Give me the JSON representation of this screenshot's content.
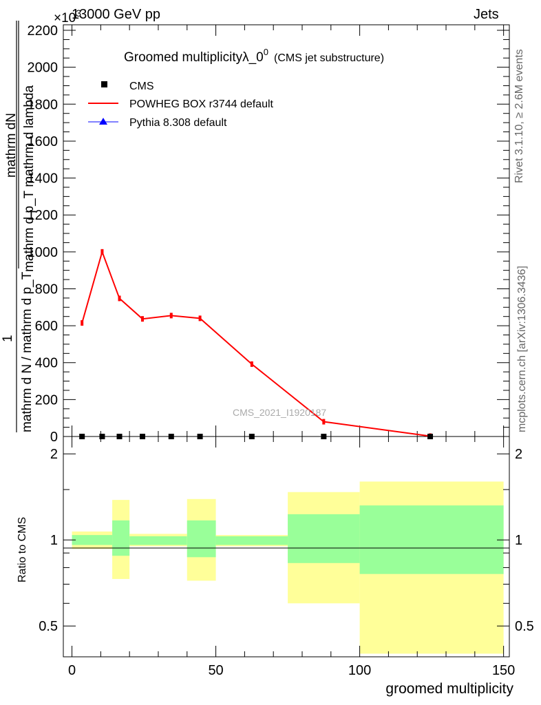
{
  "header": {
    "left": "13000 GeV pp",
    "right": "Jets",
    "exponent": "×10",
    "exponent_power": "3"
  },
  "side_labels": {
    "rivet": "Rivet 3.1.10, ≥ 2.6M events",
    "mcplots": "mcplots.cern.ch [arXiv:1306.3436]"
  },
  "main": {
    "title": "Groomed multiplicityλ_0",
    "title_sup": "0",
    "title_suffix": "(CMS jet substructure)",
    "watermark": "CMS_2021_I1920187",
    "ylabel_top": "mathrm dN",
    "ylabel_mid": "mathrm d p_T mathrm d lambda",
    "ylabel_one": "1",
    "ylabel_bottom": "mathrm d N / mathrm d p_T",
    "legend": [
      {
        "label": "CMS",
        "marker": "square",
        "color": "#000000"
      },
      {
        "label": "POWHEG BOX r3744 default",
        "marker": "line",
        "color": "#ff0000"
      },
      {
        "label": "Pythia 8.308 default",
        "marker": "triangle",
        "color": "#0000ff"
      }
    ]
  },
  "ratio": {
    "ylabel": "Ratio to CMS",
    "xlabel": "groomed multiplicity"
  },
  "colors": {
    "powheg": "#ff0000",
    "pythia": "#0000ff",
    "band_inner": "#99ff99",
    "band_outer": "#ffff99"
  },
  "chart_data": [
    {
      "type": "line",
      "xlim": [
        -3,
        152
      ],
      "ylim": [
        0,
        2230
      ],
      "y_multiplier_note": "×10^3",
      "y_ticks": [
        0,
        200,
        400,
        600,
        800,
        1000,
        1200,
        1400,
        1600,
        1800,
        2000,
        2200
      ],
      "x_ticks": [
        0,
        50,
        100,
        150
      ],
      "series": [
        {
          "name": "CMS",
          "x": [
            3.5,
            10.5,
            16.5,
            24.5,
            34.5,
            44.5,
            62.5,
            87.5,
            124.5
          ],
          "y": [
            0,
            0,
            0,
            0,
            0,
            0,
            0,
            0,
            0
          ]
        },
        {
          "name": "POWHEG BOX r3744 default",
          "x": [
            3.5,
            10.5,
            16.5,
            24.5,
            34.5,
            44.5,
            62.5,
            87.5,
            124.5
          ],
          "y": [
            615,
            1000,
            748,
            637,
            655,
            640,
            392,
            80,
            2
          ]
        },
        {
          "name": "Pythia 8.308 default",
          "x": [],
          "y": []
        }
      ]
    },
    {
      "type": "area",
      "ylim": [
        0.39,
        2.3
      ],
      "log_scale": true,
      "y_ticks": [
        0.5,
        1,
        2
      ],
      "bins": [
        {
          "x0": 0,
          "x1": 14,
          "inner": [
            0.96,
            1.04
          ],
          "outer": [
            0.93,
            1.07
          ]
        },
        {
          "x0": 14,
          "x1": 20,
          "inner": [
            0.88,
            1.17
          ],
          "outer": [
            0.73,
            1.38
          ]
        },
        {
          "x0": 20,
          "x1": 40,
          "inner": [
            0.96,
            1.03
          ],
          "outer": [
            0.95,
            1.05
          ]
        },
        {
          "x0": 40,
          "x1": 50,
          "inner": [
            0.87,
            1.17
          ],
          "outer": [
            0.72,
            1.39
          ]
        },
        {
          "x0": 50,
          "x1": 75,
          "inner": [
            0.96,
            1.03
          ],
          "outer": [
            0.95,
            1.04
          ]
        },
        {
          "x0": 75,
          "x1": 100,
          "inner": [
            0.83,
            1.23
          ],
          "outer": [
            0.6,
            1.47
          ]
        },
        {
          "x0": 100,
          "x1": 150,
          "inner": [
            0.76,
            1.32
          ],
          "outer": [
            0.4,
            1.6
          ]
        }
      ]
    }
  ]
}
